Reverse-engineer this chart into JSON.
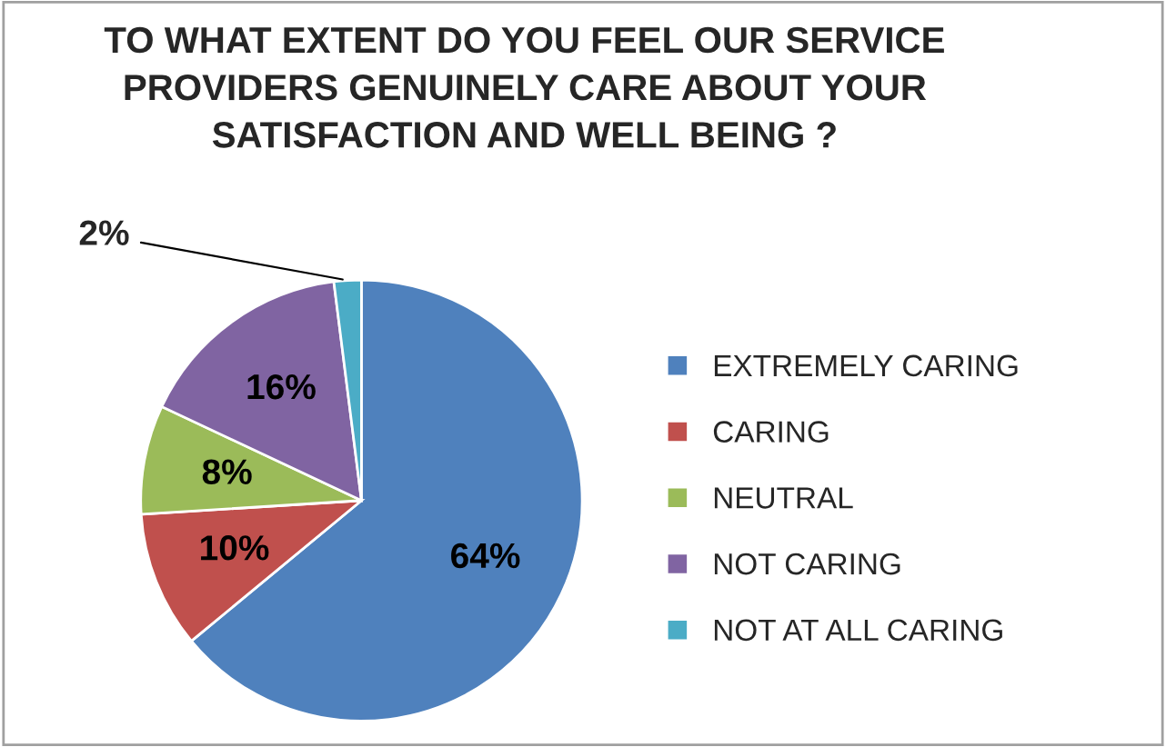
{
  "chart_data": {
    "type": "pie",
    "title": "TO WHAT EXTENT DO YOU FEEL OUR SERVICE\nPROVIDERS GENUINELY CARE ABOUT YOUR\nSATISFACTION AND WELL BEING ?",
    "categories": [
      "EXTREMELY CARING",
      "CARING",
      "NEUTRAL",
      "NOT CARING",
      "NOT AT ALL CARING"
    ],
    "values": [
      64,
      10,
      8,
      16,
      2
    ],
    "colors": [
      "#4f81bd",
      "#c0504d",
      "#9bbb59",
      "#8064a2",
      "#4bacc6"
    ],
    "value_labels": [
      "64%",
      "10%",
      "8%",
      "16%",
      "2%"
    ],
    "legend": "right"
  }
}
